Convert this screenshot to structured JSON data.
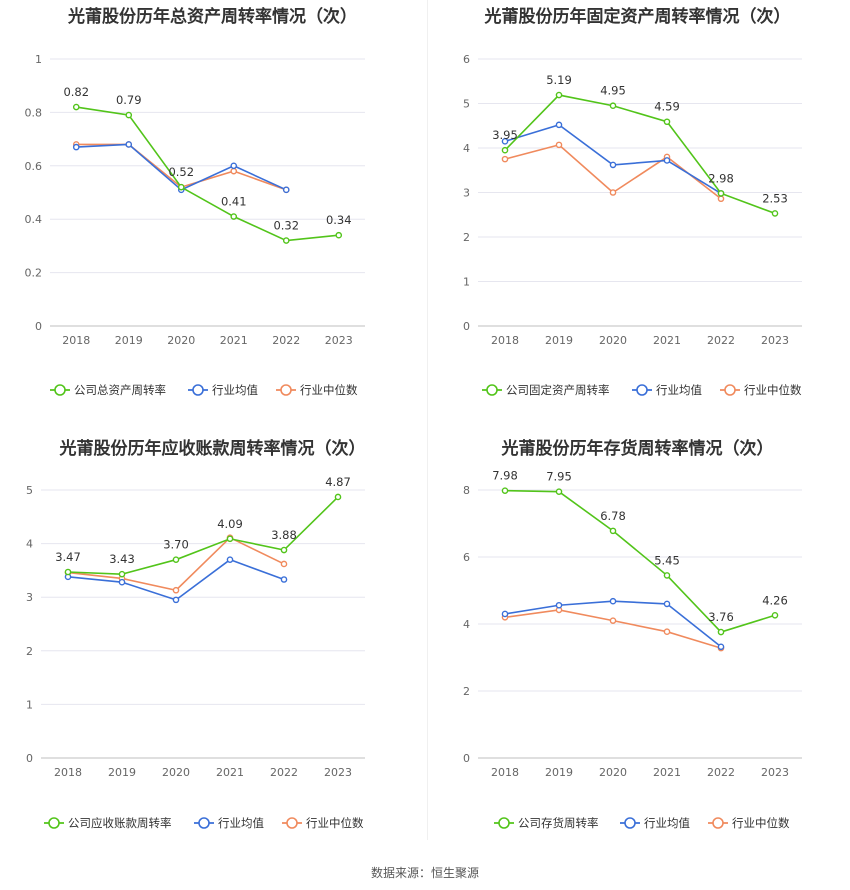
{
  "colors": {
    "company": "#52c41a",
    "average": "#3a6fd8",
    "median": "#f08a5d"
  },
  "legend": {
    "average": "行业均值",
    "median": "行业中位数"
  },
  "source": "数据来源：恒生聚源",
  "chart_data": [
    {
      "type": "line",
      "title": "光莆股份历年总资产周转率情况（次）",
      "categories": [
        "2018",
        "2019",
        "2020",
        "2021",
        "2022",
        "2023"
      ],
      "ylim": [
        0,
        1
      ],
      "yticks": [
        0,
        0.2,
        0.4,
        0.6,
        0.8,
        1
      ],
      "ytick_labels": [
        "0",
        "0.2",
        "0.4",
        "0.6",
        "0.8",
        "1"
      ],
      "series": [
        {
          "key": "company",
          "name": "公司总资产周转率",
          "values": [
            0.82,
            0.79,
            0.52,
            0.41,
            0.32,
            0.34
          ],
          "labels": [
            "0.82",
            "0.79",
            "0.52",
            "0.41",
            "0.32",
            "0.34"
          ]
        },
        {
          "key": "average",
          "name": "行业均值",
          "values": [
            0.67,
            0.68,
            0.51,
            0.6,
            0.51,
            null
          ]
        },
        {
          "key": "median",
          "name": "行业中位数",
          "values": [
            0.68,
            0.68,
            0.52,
            0.58,
            0.51,
            null
          ]
        }
      ]
    },
    {
      "type": "line",
      "title": "光莆股份历年固定资产周转率情况（次）",
      "categories": [
        "2018",
        "2019",
        "2020",
        "2021",
        "2022",
        "2023"
      ],
      "ylim": [
        0,
        6
      ],
      "yticks": [
        0,
        1,
        2,
        3,
        4,
        5,
        6
      ],
      "ytick_labels": [
        "0",
        "1",
        "2",
        "3",
        "4",
        "5",
        "6"
      ],
      "series": [
        {
          "key": "company",
          "name": "公司固定资产周转率",
          "values": [
            3.95,
            5.19,
            4.95,
            4.59,
            2.98,
            2.53
          ],
          "labels": [
            "3.95",
            "5.19",
            "4.95",
            "4.59",
            "2.98",
            "2.53"
          ]
        },
        {
          "key": "average",
          "name": "行业均值",
          "values": [
            4.15,
            4.52,
            3.62,
            3.72,
            2.98,
            null
          ]
        },
        {
          "key": "median",
          "name": "行业中位数",
          "values": [
            3.75,
            4.07,
            3.0,
            3.8,
            2.86,
            null
          ]
        }
      ]
    },
    {
      "type": "line",
      "title": "光莆股份历年应收账款周转率情况（次）",
      "categories": [
        "2018",
        "2019",
        "2020",
        "2021",
        "2022",
        "2023"
      ],
      "ylim": [
        0,
        5
      ],
      "yticks": [
        0,
        1,
        2,
        3,
        4,
        5
      ],
      "ytick_labels": [
        "0",
        "1",
        "2",
        "3",
        "4",
        "5"
      ],
      "series": [
        {
          "key": "company",
          "name": "公司应收账款周转率",
          "values": [
            3.47,
            3.43,
            3.7,
            4.09,
            3.88,
            4.87
          ],
          "labels": [
            "3.47",
            "3.43",
            "3.70",
            "4.09",
            "3.88",
            "4.87"
          ]
        },
        {
          "key": "average",
          "name": "行业均值",
          "values": [
            3.38,
            3.28,
            2.95,
            3.7,
            3.33,
            null
          ]
        },
        {
          "key": "median",
          "name": "行业中位数",
          "values": [
            3.46,
            3.35,
            3.13,
            4.11,
            3.62,
            null
          ]
        }
      ]
    },
    {
      "type": "line",
      "title": "光莆股份历年存货周转率情况（次）",
      "categories": [
        "2018",
        "2019",
        "2020",
        "2021",
        "2022",
        "2023"
      ],
      "ylim": [
        0,
        8
      ],
      "yticks": [
        0,
        2,
        4,
        6,
        8
      ],
      "ytick_labels": [
        "0",
        "2",
        "4",
        "6",
        "8"
      ],
      "series": [
        {
          "key": "company",
          "name": "公司存货周转率",
          "values": [
            7.98,
            7.95,
            6.78,
            5.45,
            3.76,
            4.26
          ],
          "labels": [
            "7.98",
            "7.95",
            "6.78",
            "5.45",
            "3.76",
            "4.26"
          ]
        },
        {
          "key": "average",
          "name": "行业均值",
          "values": [
            4.3,
            4.56,
            4.68,
            4.6,
            3.32,
            null
          ]
        },
        {
          "key": "median",
          "name": "行业中位数",
          "values": [
            4.2,
            4.42,
            4.1,
            3.77,
            3.28,
            null
          ]
        }
      ]
    }
  ]
}
